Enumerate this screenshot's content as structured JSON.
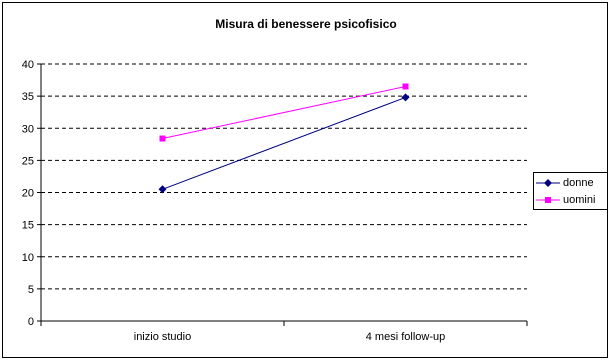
{
  "chart_data": {
    "type": "line",
    "title": "Misura di benessere psicofisico",
    "categories": [
      "inizio studio",
      "4 mesi follow-up"
    ],
    "ylim": [
      0,
      40
    ],
    "yticks": [
      0,
      5,
      10,
      15,
      20,
      25,
      30,
      35,
      40
    ],
    "ytick_labels": [
      "0",
      "5",
      "10",
      "15",
      "20",
      "25",
      "30",
      "35",
      "40"
    ],
    "grid": "horizontal dashed",
    "legend_position": "right",
    "series": [
      {
        "name": "donne",
        "values": [
          20.5,
          34.8
        ],
        "color": "#000080",
        "marker": "diamond"
      },
      {
        "name": "uomini",
        "values": [
          28.4,
          36.5
        ],
        "color": "#ff00ff",
        "marker": "square"
      }
    ]
  }
}
